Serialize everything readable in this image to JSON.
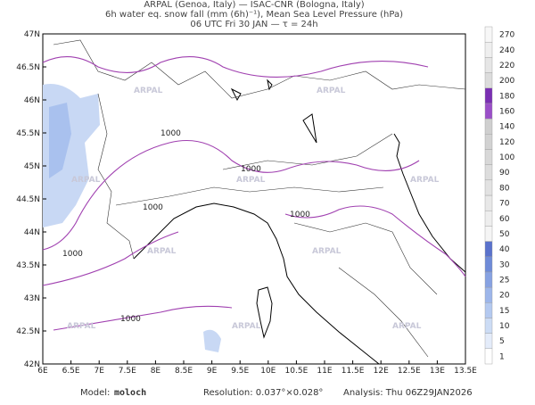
{
  "header": {
    "line1": "ARPAL (Genoa, Italy)  —  ISAC-CNR (Bologna, Italy)",
    "line2": "6h water eq. snow fall (mm (6h)⁻¹), Mean Sea Level Pressure (hPa)",
    "line3": "06 UTC Fri 30 JAN  —  τ = 24h"
  },
  "map": {
    "lon_ticks": [
      "6E",
      "6.5E",
      "7E",
      "7.5E",
      "8E",
      "8.5E",
      "9E",
      "9.5E",
      "10E",
      "10.5E",
      "11E",
      "11.5E",
      "12E",
      "12.5E",
      "13E",
      "13.5E"
    ],
    "lat_ticks": [
      "42N",
      "42.5N",
      "43N",
      "43.5N",
      "44N",
      "44.5N",
      "45N",
      "45.5N",
      "46N",
      "46.5N",
      "47N"
    ],
    "contour_label": "1000",
    "watermark": "ARPAL"
  },
  "colorbar": {
    "levels": [
      1,
      5,
      10,
      15,
      20,
      25,
      30,
      40,
      50,
      60,
      70,
      80,
      90,
      100,
      120,
      140,
      160,
      180,
      200,
      220,
      240,
      270
    ],
    "colors": [
      "#ffffff",
      "#e4ecfa",
      "#ccdcf5",
      "#b4c9f0",
      "#9db6ea",
      "#87a2e2",
      "#6f8bd8",
      "#5a72cc",
      "#f5f5f5",
      "#eeeeee",
      "#e8e8e8",
      "#e2e2e2",
      "#dddddd",
      "#d8d8d8",
      "#d2d2d2",
      "#cfcfcf",
      "#9a4fc8",
      "#7a2fb3",
      "#dcdcdc",
      "#e6e6e6",
      "#efefef",
      "#f7f7f7"
    ]
  },
  "footer": {
    "model_label": "Model:",
    "model": "moloch",
    "resolution": "Resolution: 0.037°×0.028°",
    "analysis": "Analysis: Thu 06Z29JAN2026"
  }
}
